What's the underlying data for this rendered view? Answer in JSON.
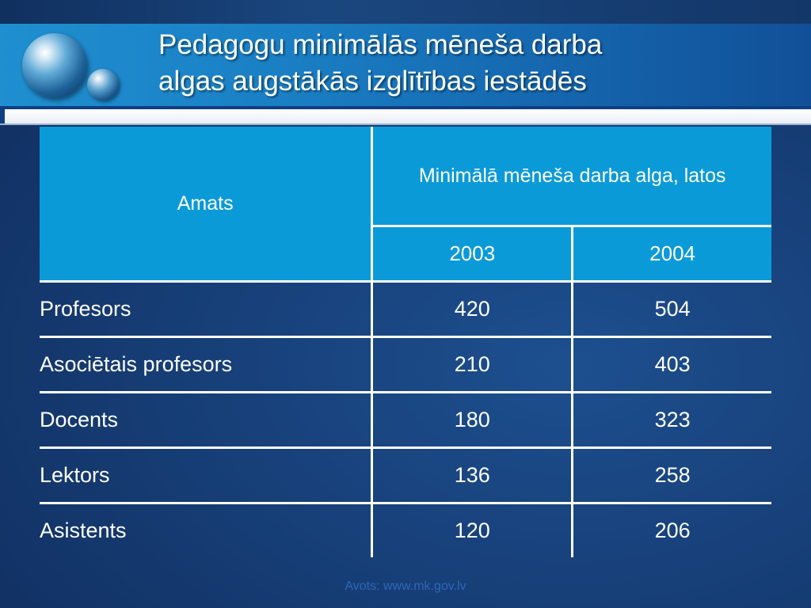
{
  "title": {
    "line1": "Pedagogu minimālās mēneša darba",
    "line2": "algas augstākās izglītības iestādēs"
  },
  "table": {
    "header": {
      "role_col": "Amats",
      "group_col": "Minimālā mēneša darba alga, latos",
      "years": [
        "2003",
        "2004"
      ]
    },
    "rows": [
      {
        "role": "Profesors",
        "y2003": "420",
        "y2004": "504"
      },
      {
        "role": "Asociētais profesors",
        "y2003": "210",
        "y2004": "403"
      },
      {
        "role": "Docents",
        "y2003": "180",
        "y2004": "323"
      },
      {
        "role": "Lektors",
        "y2003": "136",
        "y2004": "258"
      },
      {
        "role": "Asistents",
        "y2003": "120",
        "y2004": "206"
      }
    ]
  },
  "source": "Avots: www.mk.gov.lv",
  "colors": {
    "header_bg": "#0b9ad8",
    "background": "#173f78",
    "title_band": "#1a7fc4",
    "source_text": "#2f66b8"
  }
}
